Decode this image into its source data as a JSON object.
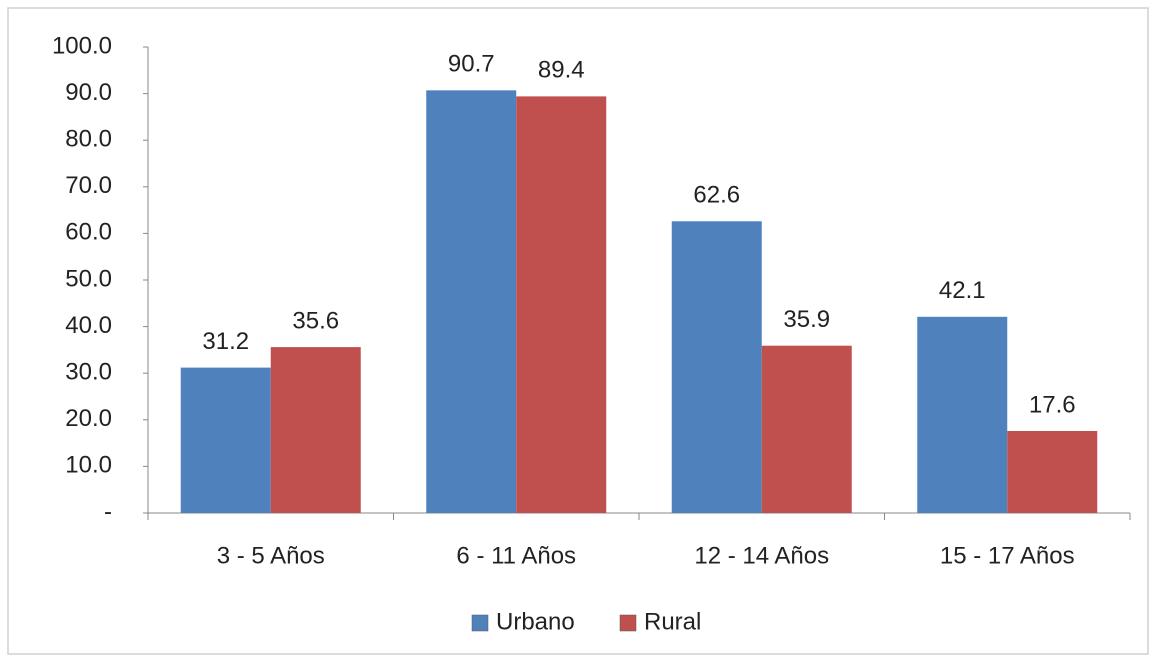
{
  "chart_data": {
    "type": "bar",
    "categories": [
      "3 - 5 Años",
      "6 - 11 Años",
      "12 - 14 Años",
      "15 - 17 Años"
    ],
    "series": [
      {
        "name": "Urbano",
        "color": "#4f81bd",
        "values": [
          31.2,
          90.7,
          62.6,
          42.1
        ]
      },
      {
        "name": "Rural",
        "color": "#c0504d",
        "values": [
          35.6,
          89.4,
          35.9,
          17.6
        ]
      }
    ],
    "ylim": [
      0,
      100
    ],
    "yticks": [
      {
        "value": 0,
        "label": "-"
      },
      {
        "value": 10,
        "label": "10.0"
      },
      {
        "value": 20,
        "label": "20.0"
      },
      {
        "value": 30,
        "label": "30.0"
      },
      {
        "value": 40,
        "label": "40.0"
      },
      {
        "value": 50,
        "label": "50.0"
      },
      {
        "value": 60,
        "label": "60.0"
      },
      {
        "value": 70,
        "label": "70.0"
      },
      {
        "value": 80,
        "label": "80.0"
      },
      {
        "value": 90,
        "label": "90.0"
      },
      {
        "value": 100,
        "label": "100.0"
      }
    ],
    "grid": false,
    "legend": "bottom"
  }
}
